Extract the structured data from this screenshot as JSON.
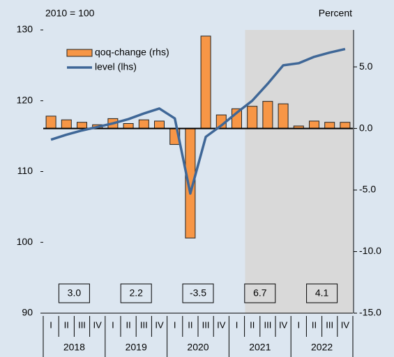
{
  "chart_data": {
    "type": "bar",
    "title": "2010 = 100",
    "y2_label": "Percent",
    "categories": [
      "I",
      "II",
      "III",
      "IV",
      "I",
      "II",
      "III",
      "IV",
      "I",
      "II",
      "III",
      "IV",
      "I",
      "II",
      "III",
      "IV",
      "I",
      "II",
      "III",
      "IV"
    ],
    "years": [
      "2018",
      "2019",
      "2020",
      "2021",
      "2022"
    ],
    "annual_values": [
      3.0,
      2.2,
      -3.5,
      6.7,
      4.1
    ],
    "annual_labels": [
      "3.0",
      "2.2",
      "-3.5",
      "6.7",
      "4.1"
    ],
    "series": [
      {
        "name": "qoq-change (rhs)",
        "type": "bar",
        "axis": "y2",
        "color": "#f79646",
        "values": [
          1.0,
          0.7,
          0.5,
          0.3,
          0.8,
          0.4,
          0.7,
          0.6,
          -1.3,
          -8.9,
          7.5,
          1.1,
          1.6,
          1.8,
          2.2,
          2.0,
          0.2,
          0.6,
          0.5,
          0.5
        ]
      },
      {
        "name": "level (lhs)",
        "type": "line",
        "color": "#3f6797",
        "values": [
          114.5,
          115.2,
          115.8,
          116.3,
          116.8,
          117.4,
          118.2,
          118.9,
          117.5,
          106.9,
          114.9,
          116.5,
          118.3,
          120.0,
          122.4,
          125.0,
          125.3,
          126.2,
          126.8,
          127.3
        ]
      }
    ],
    "ylim": [
      90,
      130
    ],
    "yticks": [
      90,
      100,
      110,
      120,
      130
    ],
    "y2lim": [
      -15,
      8
    ],
    "y2ticks": [
      {
        "value": -15,
        "label": "-15.0"
      },
      {
        "value": -10,
        "label": "-10.0"
      },
      {
        "value": -5,
        "label": "-5.0"
      },
      {
        "value": 0,
        "label": "0.0"
      },
      {
        "value": 5,
        "label": "5.0"
      }
    ]
  }
}
